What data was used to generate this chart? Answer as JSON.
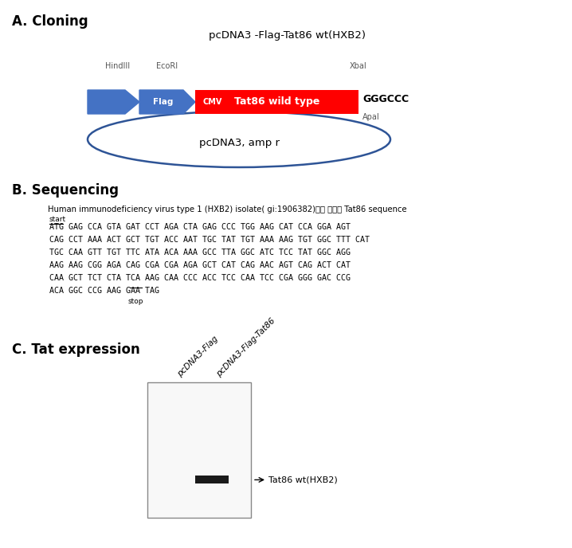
{
  "title_a": "A. Cloning",
  "title_b": "B. Sequencing",
  "title_c": "C. Tat expression",
  "plasmid_title": "pcDNA3 -Flag-Tat86 wt(HXB2)",
  "plasmid_subtitle": "pcDNA3, amp r",
  "gggccc_text": "GGGCCC",
  "cmv_color": "#4472C4",
  "flag_color": "#4472C4",
  "tat_color": "#FF0000",
  "seq_header": "Human immunodeficiency virus type 1 (HXB2) isolate( gi:1906382)에서 유래된 Tat86 sequence",
  "seq_lines": [
    "ATG GAG CCA GTA GAT CCT AGA CTA GAG CCC TGG AAG CAT CCA GGA AGT",
    "CAG CCT AAA ACT GCT TGT ACC AAT TGC TAT TGT AAA AAG TGT GGC TTT CAT",
    "TGC CAA GTT TGT TTC ATA ACA AAA GCC TTA GGC ATC TCC TAT GGC AGG",
    "AAG AAG CGG AGA CAG CGA CGA AGA GCT CAT CAG AAC AGT CAG ACT CAT",
    "CAA GCT TCT CTA TCA AAG CAA CCC ACC TCC CAA TCC CGA GGG GAC CCG",
    "ACA GGC CCG AAG GAA TAG"
  ],
  "start_label": "start",
  "stop_label": "stop",
  "wb_label1": "pcDNA3-Flag",
  "wb_label2": "pcDNA3-Flag-Tat86",
  "wb_band_label": "Tat86 wt(HXB2)",
  "bg_color": "#FFFFFF",
  "text_color": "#000000"
}
